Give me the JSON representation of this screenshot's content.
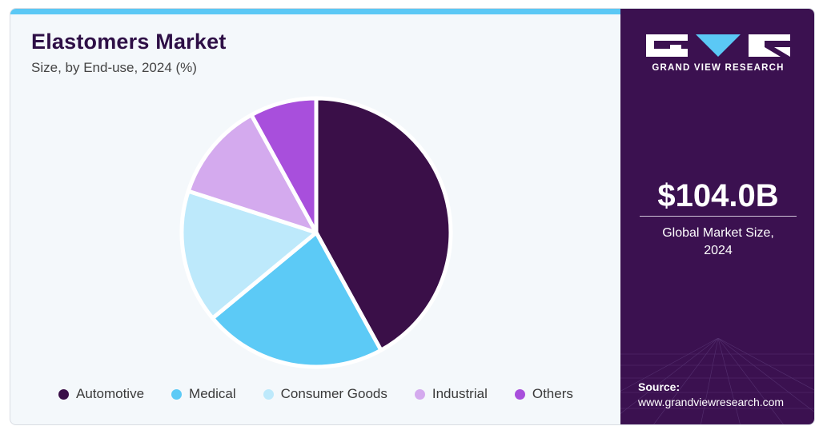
{
  "chart_data": {
    "type": "pie",
    "title": "Elastomers Market",
    "subtitle": "Size, by End-use, 2024 (%)",
    "categories": [
      "Automotive",
      "Medical",
      "Consumer Goods",
      "Industrial",
      "Others"
    ],
    "values": [
      42,
      22,
      16,
      12,
      8
    ],
    "colors": [
      "#3a0f48",
      "#5ccaf6",
      "#bde9fb",
      "#d4aaee",
      "#a84fdc"
    ],
    "legend_position": "bottom"
  },
  "sidebar": {
    "logo_text": "GRAND VIEW RESEARCH",
    "market_value": "$104.0B",
    "market_label_line1": "Global Market Size,",
    "market_label_line2": "2024",
    "source_label": "Source:",
    "source_url": "www.grandviewresearch.com"
  }
}
